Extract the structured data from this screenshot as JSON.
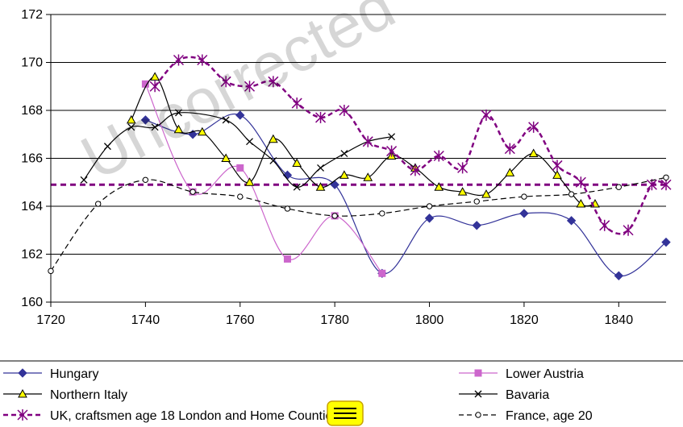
{
  "watermark": "Uncorrected",
  "chart_data": {
    "type": "line",
    "title": "",
    "xlabel": "",
    "ylabel": "",
    "xlim": [
      1720,
      1850
    ],
    "ylim": [
      160,
      172
    ],
    "xticks": [
      "1720",
      "1740",
      "1760",
      "1780",
      "1800",
      "1820",
      "1840"
    ],
    "yticks": [
      "160",
      "162",
      "164",
      "166",
      "168",
      "170",
      "172"
    ],
    "grid": "horizontal",
    "legend_position": "bottom",
    "reference_line": {
      "y": 164.9,
      "color": "#800080"
    },
    "series": [
      {
        "name": "Hungary",
        "color": "#333399",
        "marker": "diamond",
        "dash": "solid",
        "points": [
          [
            1740,
            167.6
          ],
          [
            1750,
            167.0
          ],
          [
            1760,
            167.8
          ],
          [
            1770,
            165.3
          ],
          [
            1780,
            164.9
          ],
          [
            1790,
            161.2
          ],
          [
            1800,
            163.5
          ],
          [
            1810,
            163.2
          ],
          [
            1820,
            163.7
          ],
          [
            1830,
            163.4
          ],
          [
            1840,
            161.1
          ],
          [
            1850,
            162.5
          ]
        ]
      },
      {
        "name": "Lower Austria",
        "color": "#cc66cc",
        "marker": "square",
        "dash": "solid",
        "points": [
          [
            1740,
            169.1
          ],
          [
            1750,
            164.6
          ],
          [
            1760,
            165.6
          ],
          [
            1770,
            161.8
          ],
          [
            1780,
            163.6
          ],
          [
            1790,
            161.2
          ]
        ]
      },
      {
        "name": "Northern Italy",
        "color": "#000000",
        "marker": "triangle",
        "dash": "solid",
        "points": [
          [
            1737,
            167.6
          ],
          [
            1742,
            169.4
          ],
          [
            1747,
            167.2
          ],
          [
            1752,
            167.1
          ],
          [
            1757,
            166.0
          ],
          [
            1762,
            165.0
          ],
          [
            1767,
            166.8
          ],
          [
            1772,
            165.8
          ],
          [
            1777,
            164.8
          ],
          [
            1782,
            165.3
          ],
          [
            1787,
            165.2
          ],
          [
            1792,
            166.1
          ],
          [
            1797,
            165.6
          ],
          [
            1802,
            164.8
          ],
          [
            1807,
            164.6
          ],
          [
            1812,
            164.5
          ],
          [
            1817,
            165.4
          ],
          [
            1822,
            166.2
          ],
          [
            1827,
            165.3
          ],
          [
            1832,
            164.1
          ],
          [
            1835,
            164.1
          ]
        ]
      },
      {
        "name": "Bavaria",
        "color": "#000000",
        "marker": "x",
        "dash": "solid",
        "points": [
          [
            1727,
            165.1
          ],
          [
            1732,
            166.5
          ],
          [
            1737,
            167.3
          ],
          [
            1742,
            167.3
          ],
          [
            1747,
            167.9
          ],
          [
            1757,
            167.6
          ],
          [
            1762,
            166.7
          ],
          [
            1767,
            165.9
          ],
          [
            1772,
            164.8
          ],
          [
            1777,
            165.6
          ],
          [
            1782,
            166.2
          ],
          [
            1787,
            166.7
          ],
          [
            1792,
            166.9
          ]
        ]
      },
      {
        "name": "UK, craftsmen age 18 London and Home Counties",
        "color": "#800080",
        "marker": "asterisk",
        "dash": "dashed",
        "points": [
          [
            1742,
            169.0
          ],
          [
            1747,
            170.1
          ],
          [
            1752,
            170.1
          ],
          [
            1757,
            169.2
          ],
          [
            1762,
            169.0
          ],
          [
            1767,
            169.2
          ],
          [
            1772,
            168.3
          ],
          [
            1777,
            167.7
          ],
          [
            1782,
            168.0
          ],
          [
            1787,
            166.7
          ],
          [
            1792,
            166.3
          ],
          [
            1797,
            165.5
          ],
          [
            1802,
            166.1
          ],
          [
            1807,
            165.6
          ],
          [
            1812,
            167.8
          ],
          [
            1817,
            166.4
          ],
          [
            1822,
            167.3
          ],
          [
            1827,
            165.7
          ],
          [
            1832,
            165.0
          ],
          [
            1837,
            163.2
          ],
          [
            1842,
            163.0
          ],
          [
            1847,
            164.9
          ],
          [
            1850,
            164.9
          ]
        ]
      },
      {
        "name": "France, age 20",
        "color": "#000000",
        "marker": "circle",
        "dash": "dashed",
        "points": [
          [
            1720,
            161.3
          ],
          [
            1730,
            164.1
          ],
          [
            1740,
            165.1
          ],
          [
            1750,
            164.6
          ],
          [
            1760,
            164.4
          ],
          [
            1770,
            163.9
          ],
          [
            1780,
            163.6
          ],
          [
            1790,
            163.7
          ],
          [
            1800,
            164.0
          ],
          [
            1810,
            164.2
          ],
          [
            1820,
            164.4
          ],
          [
            1830,
            164.5
          ],
          [
            1840,
            164.8
          ],
          [
            1850,
            165.2
          ]
        ]
      }
    ]
  }
}
